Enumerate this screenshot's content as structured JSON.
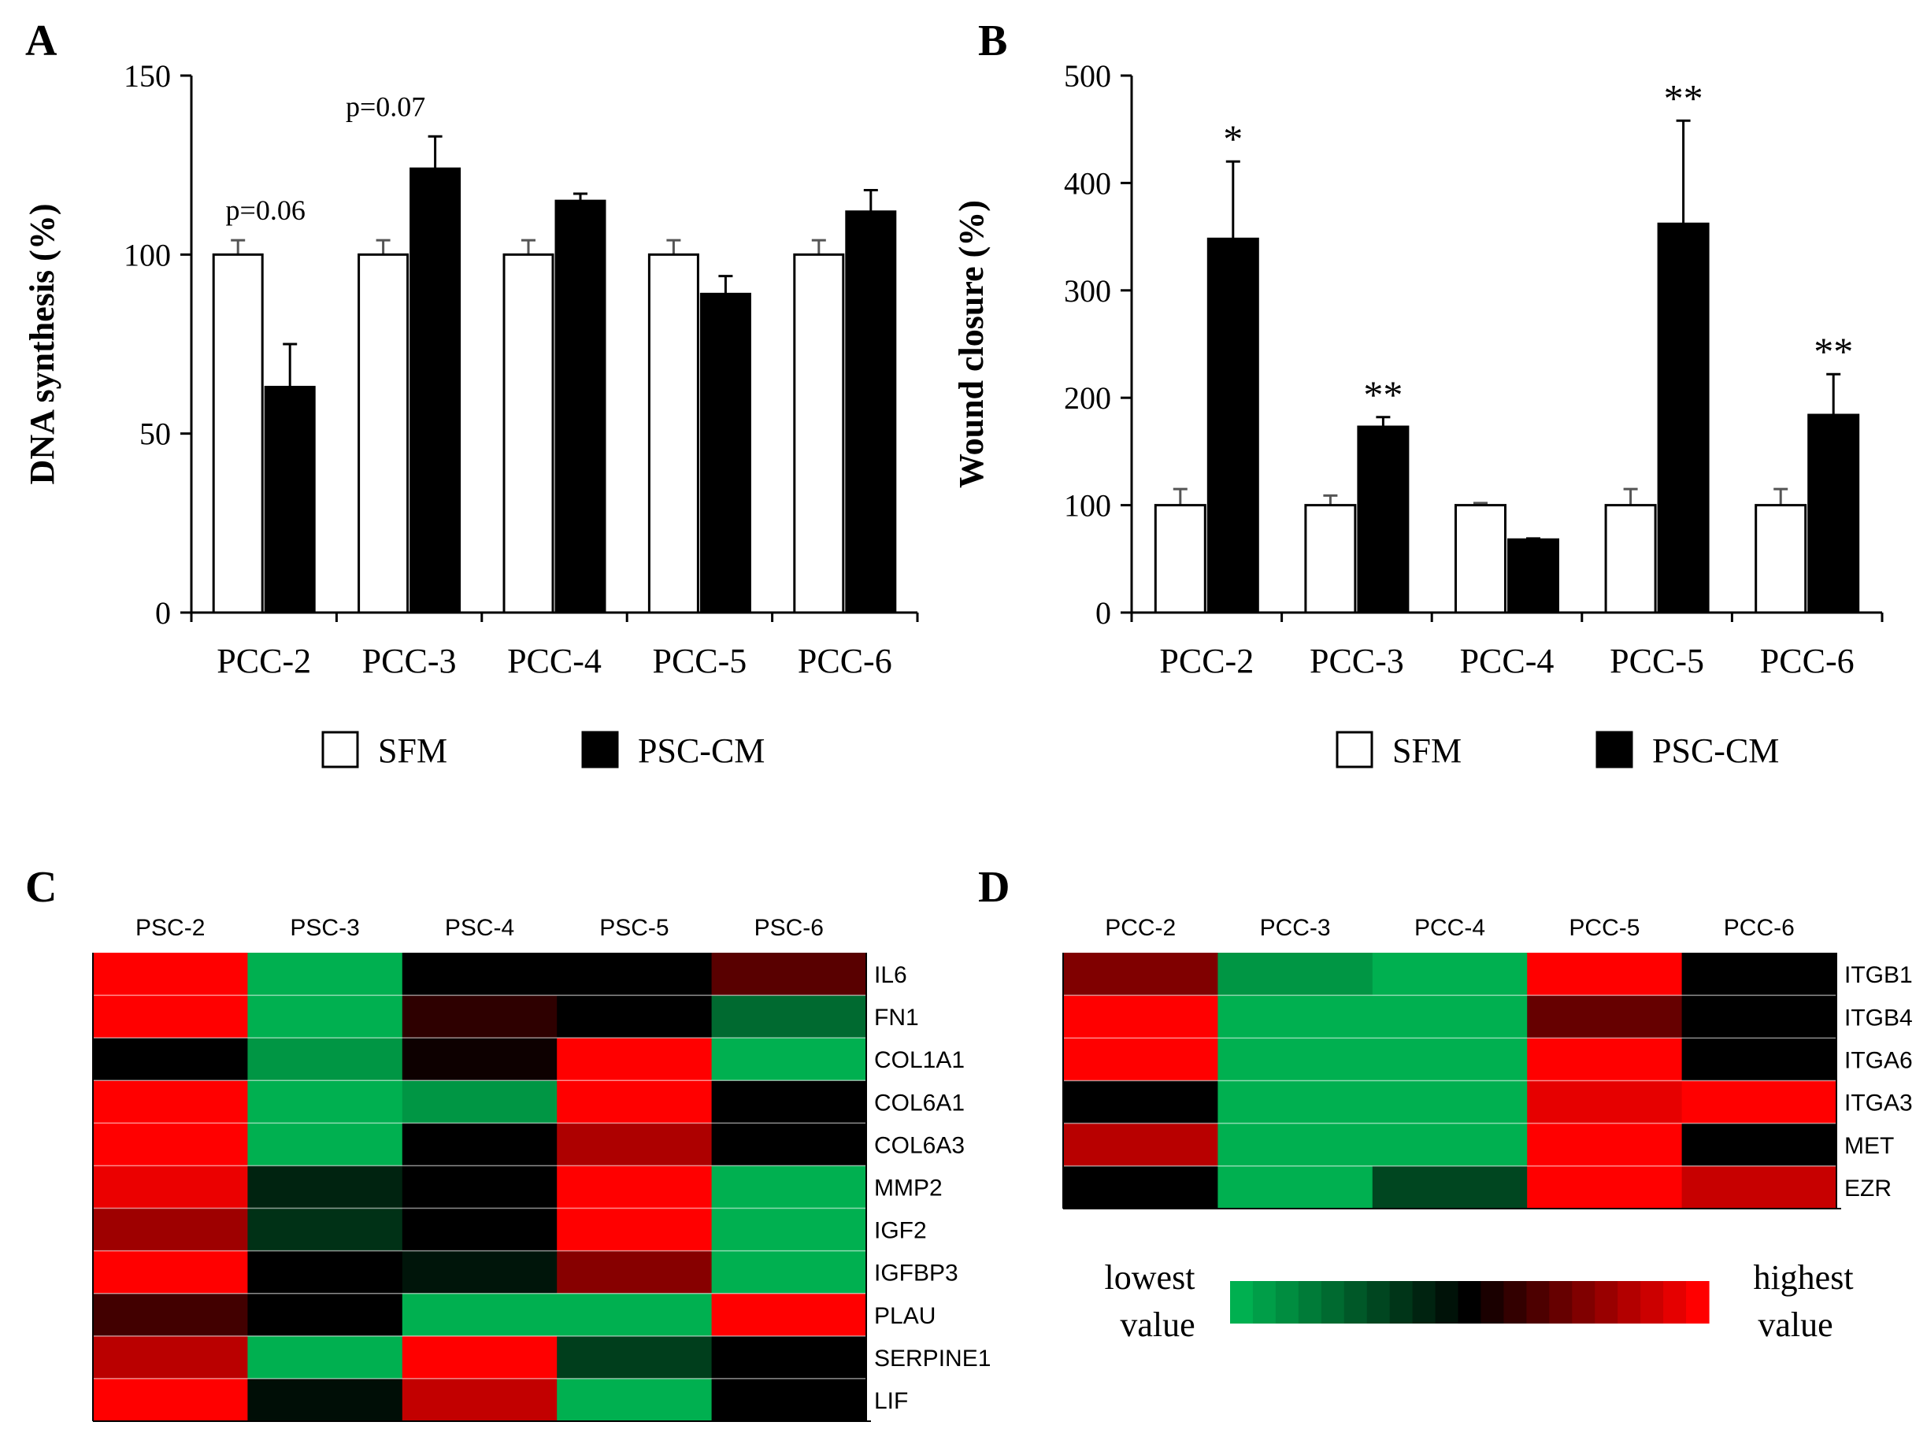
{
  "colors": {
    "sfm": "#ffffff",
    "psc_cm": "#000000",
    "axis": "#000000",
    "heat_low": "#00b050",
    "heat_mid": "#000000",
    "heat_high": "#ff0000"
  },
  "chart_data": [
    {
      "panel": "A",
      "type": "bar",
      "ylabel": "DNA synthesis (%)",
      "xlabel": "",
      "ylim": [
        0,
        150
      ],
      "yticks": [
        "0",
        "50",
        "100",
        "150"
      ],
      "categories": [
        "PCC-2",
        "PCC-3",
        "PCC-4",
        "PCC-5",
        "PCC-6"
      ],
      "series": [
        {
          "name": "SFM",
          "values": [
            100,
            100,
            100,
            100,
            100
          ],
          "errors": [
            4,
            4,
            4,
            4,
            4
          ]
        },
        {
          "name": "PSC-CM",
          "values": [
            63,
            124,
            115,
            89,
            112
          ],
          "errors": [
            12,
            9,
            2,
            5,
            6
          ]
        }
      ],
      "annotations": [
        "p=0.06",
        "p=0.07",
        "",
        "",
        ""
      ],
      "legend": [
        "SFM",
        "PSC-CM"
      ]
    },
    {
      "panel": "B",
      "type": "bar",
      "ylabel": "Wound closure (%)",
      "xlabel": "",
      "ylim": [
        0,
        500
      ],
      "yticks": [
        "0",
        "100",
        "200",
        "300",
        "400",
        "500"
      ],
      "categories": [
        "PCC-2",
        "PCC-3",
        "PCC-4",
        "PCC-5",
        "PCC-6"
      ],
      "series": [
        {
          "name": "SFM",
          "values": [
            100,
            100,
            100,
            100,
            100
          ],
          "errors": [
            15,
            9,
            2,
            15,
            15
          ]
        },
        {
          "name": "PSC-CM",
          "values": [
            348,
            173,
            68,
            362,
            184
          ],
          "errors": [
            72,
            9,
            1,
            96,
            38
          ]
        }
      ],
      "annotations": [
        "*",
        "**",
        "",
        "**",
        "**"
      ],
      "legend": [
        "SFM",
        "PSC-CM"
      ]
    },
    {
      "panel": "C",
      "type": "heatmap",
      "columns": [
        "PSC-2",
        "PSC-3",
        "PSC-4",
        "PSC-5",
        "PSC-6"
      ],
      "rows": [
        "IL6",
        "FN1",
        "COL1A1",
        "COL6A1",
        "COL6A3",
        "MMP2",
        "IGF2",
        "IGFBP3",
        "PLAU",
        "SERPINE1",
        "LIF"
      ],
      "values": [
        [
          1.0,
          -1.0,
          0.0,
          0.0,
          0.35
        ],
        [
          1.0,
          -1.0,
          0.18,
          0.0,
          -0.6
        ],
        [
          0.0,
          -0.85,
          0.05,
          1.0,
          -1.0
        ],
        [
          1.0,
          -1.0,
          -0.85,
          1.0,
          0.0
        ],
        [
          1.0,
          -1.0,
          0.0,
          0.68,
          0.0
        ],
        [
          0.92,
          -0.2,
          0.0,
          1.0,
          -1.0
        ],
        [
          0.62,
          -0.28,
          0.0,
          1.0,
          -1.0
        ],
        [
          1.0,
          0.0,
          -0.12,
          0.53,
          -1.0
        ],
        [
          0.26,
          0.0,
          -1.0,
          -1.0,
          1.0
        ],
        [
          0.73,
          -1.0,
          1.0,
          -0.35,
          0.0
        ],
        [
          1.0,
          -0.08,
          0.76,
          -1.0,
          0.0
        ]
      ]
    },
    {
      "panel": "D",
      "type": "heatmap",
      "columns": [
        "PCC-2",
        "PCC-3",
        "PCC-4",
        "PCC-5",
        "PCC-6"
      ],
      "rows": [
        "ITGB1",
        "ITGB4",
        "ITGA6",
        "ITGA3",
        "MET",
        "EZR"
      ],
      "values": [
        [
          0.5,
          -0.85,
          -1.0,
          1.0,
          0.0
        ],
        [
          1.0,
          -1.0,
          -1.0,
          0.4,
          0.0
        ],
        [
          1.0,
          -1.0,
          -1.0,
          1.0,
          0.0
        ],
        [
          0.0,
          -1.0,
          -1.0,
          0.9,
          1.0
        ],
        [
          0.72,
          -1.0,
          -1.0,
          1.0,
          0.0
        ],
        [
          0.0,
          -1.0,
          -0.4,
          1.0,
          0.78
        ]
      ]
    }
  ],
  "color_scale": {
    "low_label_line1": "lowest",
    "low_label_line2": "value",
    "high_label_line1": "highest",
    "high_label_line2": "value",
    "steps": 21
  }
}
